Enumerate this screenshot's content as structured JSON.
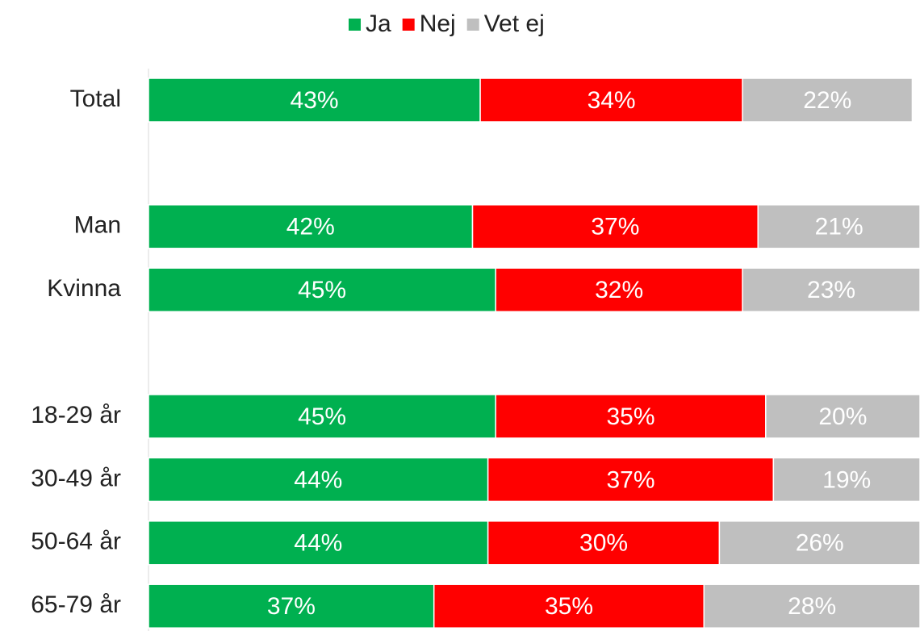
{
  "chart_data": {
    "type": "stacked-barh",
    "categories": [
      "Total",
      null,
      "Man",
      "Kvinna",
      null,
      "18-29 år",
      "30-49 år",
      "50-64 år",
      "65-79 år"
    ],
    "series": [
      {
        "name": "Ja",
        "color": "#00b050",
        "values": [
          43,
          null,
          42,
          45,
          null,
          45,
          44,
          44,
          37
        ],
        "value_labels": [
          "43%",
          null,
          "42%",
          "45%",
          null,
          "45%",
          "44%",
          "44%",
          "37%"
        ]
      },
      {
        "name": "Nej",
        "color": "#ff0000",
        "values": [
          34,
          null,
          37,
          32,
          null,
          35,
          37,
          30,
          35
        ],
        "value_labels": [
          "34%",
          null,
          "37%",
          "32%",
          null,
          "35%",
          "37%",
          "30%",
          "35%"
        ]
      },
      {
        "name": "Vet ej",
        "color": "#bfbfbf",
        "values": [
          22,
          null,
          21,
          23,
          null,
          20,
          19,
          26,
          28
        ],
        "value_labels": [
          "22%",
          null,
          "21%",
          "23%",
          null,
          "20%",
          "19%",
          "26%",
          "28%"
        ]
      }
    ],
    "xlim": [
      0,
      100
    ],
    "legend": "top"
  }
}
